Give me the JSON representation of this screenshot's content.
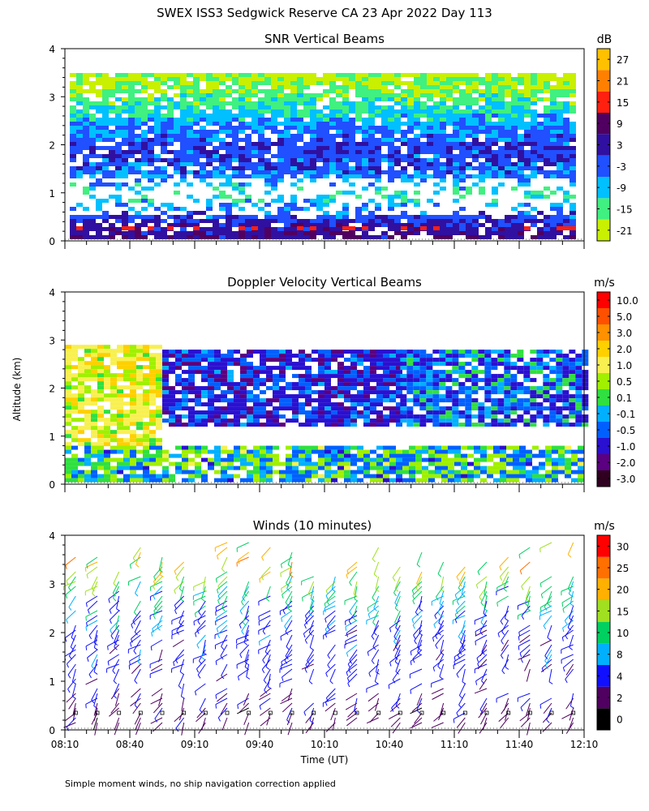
{
  "header": {
    "title": "SWEX ISS3 Sedgwick Reserve CA  23 Apr 2022 Day 113"
  },
  "footer": {
    "note": "Simple moment winds, no ship navigation correction applied"
  },
  "axes": {
    "ylabel": "Altitude (km)",
    "xlabel": "Time (UT)",
    "xticks": [
      "08:10",
      "08:40",
      "09:10",
      "09:40",
      "10:10",
      "10:40",
      "11:10",
      "11:40",
      "12:10"
    ],
    "yticks": [
      "0",
      "1",
      "2",
      "3",
      "4"
    ]
  },
  "chart_data": [
    {
      "type": "heatmap",
      "title": "SNR Vertical Beams",
      "units": "dB",
      "xlim": [
        "08:10",
        "12:10"
      ],
      "ylim": [
        0,
        4
      ],
      "colorbar_ticks": [
        "27",
        "21",
        "15",
        "9",
        "3",
        "-3",
        "-9",
        "-15",
        "-21"
      ],
      "colorbar_range": [
        -24,
        33
      ],
      "colors": [
        "#c8f000",
        "#40f080",
        "#00c0ff",
        "#2050ff",
        "#3010a0",
        "#500060",
        "#ff2010",
        "#ff8000",
        "#ffc000"
      ],
      "profile": [
        {
          "altitude_km": 0.2,
          "snr_db": 6
        },
        {
          "altitude_km": 0.4,
          "snr_db": 3
        },
        {
          "altitude_km": 1.0,
          "snr_db": -12
        },
        {
          "altitude_km": 1.5,
          "snr_db": -2
        },
        {
          "altitude_km": 2.0,
          "snr_db": 0
        },
        {
          "altitude_km": 2.5,
          "snr_db": -6
        },
        {
          "altitude_km": 3.0,
          "snr_db": -15
        },
        {
          "altitude_km": 3.5,
          "snr_db": -20
        }
      ]
    },
    {
      "type": "heatmap",
      "title": "Doppler Velocity Vertical Beams",
      "units": "m/s",
      "xlim": [
        "08:10",
        "12:10"
      ],
      "ylim": [
        0,
        4
      ],
      "colorbar_ticks": [
        "10.0",
        "5.0",
        "3.0",
        "2.0",
        "1.0",
        "0.5",
        "0.1",
        "-0.1",
        "-0.5",
        "-1.0",
        "-2.0",
        "-3.0"
      ],
      "colors": [
        "#300020",
        "#5a0080",
        "#2a10d0",
        "#0060ff",
        "#00b0ff",
        "#30e040",
        "#a0f000",
        "#f8f050",
        "#ffd000",
        "#ff9000",
        "#ff5000",
        "#ff0000"
      ],
      "regions": [
        {
          "time_range": [
            "08:10",
            "08:55"
          ],
          "altitude_km": [
            0.8,
            2.9
          ],
          "velocity_m_s": 1.0
        },
        {
          "time_range": [
            "08:55",
            "10:45"
          ],
          "altitude_km": [
            1.2,
            2.8
          ],
          "velocity_m_s": -1.0
        },
        {
          "time_range": [
            "10:45",
            "12:10"
          ],
          "altitude_km": [
            1.2,
            2.8
          ],
          "velocity_m_s": -0.5
        },
        {
          "time_range": [
            "08:10",
            "12:10"
          ],
          "altitude_km": [
            0.1,
            0.8
          ],
          "velocity_m_s": 0.0
        }
      ]
    },
    {
      "type": "wind barbs",
      "title": "Winds (10 minutes)",
      "units": "m/s",
      "xlim": [
        "08:10",
        "12:10"
      ],
      "ylim": [
        0,
        4
      ],
      "colorbar_ticks": [
        "30",
        "25",
        "20",
        "15",
        "10",
        "8",
        "4",
        "2",
        "0"
      ],
      "colors": [
        "#000000",
        "#500060",
        "#1010ff",
        "#00b0ff",
        "#00d060",
        "#a0e020",
        "#ffb000",
        "#ff7000",
        "#ff0000"
      ],
      "profile_times": [
        "08:15",
        "08:25",
        "08:35",
        "08:45",
        "08:55",
        "09:05",
        "09:15",
        "09:25",
        "09:35",
        "09:45",
        "09:55",
        "10:05",
        "10:15",
        "10:25",
        "10:35",
        "10:45",
        "10:55",
        "11:05",
        "11:15",
        "11:25",
        "11:35",
        "11:45",
        "11:55",
        "12:05"
      ],
      "mean_speed_by_altitude": [
        {
          "altitude_km": 0.5,
          "speed_m_s": 3
        },
        {
          "altitude_km": 1.0,
          "speed_m_s": 5
        },
        {
          "altitude_km": 1.5,
          "speed_m_s": 6
        },
        {
          "altitude_km": 2.0,
          "speed_m_s": 6
        },
        {
          "altitude_km": 2.5,
          "speed_m_s": 8
        },
        {
          "altitude_km": 3.0,
          "speed_m_s": 12
        },
        {
          "altitude_km": 3.5,
          "speed_m_s": 20
        }
      ]
    }
  ]
}
